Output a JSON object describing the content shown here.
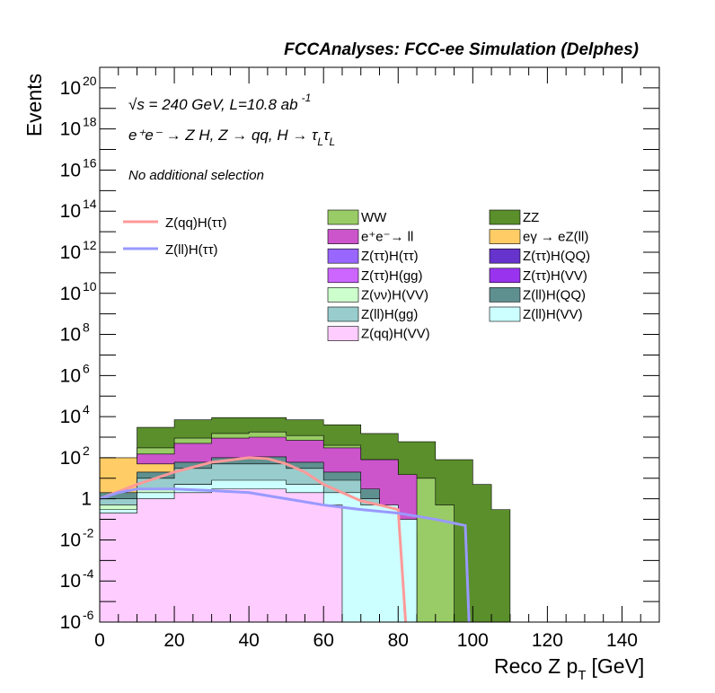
{
  "chart_data": {
    "type": "area",
    "title": "FCCAnalyses: FCC-ee Simulation (Delphes)",
    "xlabel": "Reco Z p",
    "xlabel_sub": "T",
    "xlabel_unit": "[GeV]",
    "ylabel": "Events",
    "x_range": [
      0,
      150
    ],
    "y_scale": "log",
    "y_range": [
      1e-06,
      1e+21
    ],
    "x_tick_labels": [
      "0",
      "20",
      "40",
      "60",
      "80",
      "100",
      "120",
      "140"
    ],
    "x_ticks": [
      0,
      20,
      40,
      60,
      80,
      100,
      120,
      140
    ],
    "y_ticks": [
      {
        "value": 1e-06,
        "base": "10",
        "exp": "-6"
      },
      {
        "value": 0.0001,
        "base": "10",
        "exp": "-4"
      },
      {
        "value": 0.01,
        "base": "10",
        "exp": "-2"
      },
      {
        "value": 1,
        "base": "1",
        "exp": ""
      },
      {
        "value": 100.0,
        "base": "10",
        "exp": "2"
      },
      {
        "value": 10000.0,
        "base": "10",
        "exp": "4"
      },
      {
        "value": 1000000.0,
        "base": "10",
        "exp": "6"
      },
      {
        "value": 100000000.0,
        "base": "10",
        "exp": "8"
      },
      {
        "value": 10000000000.0,
        "base": "10",
        "exp": "10"
      },
      {
        "value": 1000000000000.0,
        "base": "10",
        "exp": "12"
      },
      {
        "value": 100000000000000.0,
        "base": "10",
        "exp": "14"
      },
      {
        "value": 1e+16,
        "base": "10",
        "exp": "16"
      },
      {
        "value": 1e+18,
        "base": "10",
        "exp": "18"
      },
      {
        "value": 1e+20,
        "base": "10",
        "exp": "20"
      }
    ],
    "annotations": {
      "energy": "√s = 240 GeV, L=10.8 ab",
      "energy_sup": "-1",
      "process": "e⁺e⁻ → Z H, Z → qq, H → τ",
      "process_sub1": "L",
      "process_tau2": "τ",
      "process_sub2": "L",
      "selection": "No additional selection"
    },
    "stack_series": [
      {
        "name": "ZZ",
        "color": "#5a8f2b",
        "bins": [
          [
            0,
            50
          ],
          [
            10,
            3000
          ],
          [
            20,
            7000
          ],
          [
            30,
            9000
          ],
          [
            40,
            9000
          ],
          [
            50,
            7000
          ],
          [
            60,
            4000
          ],
          [
            70,
            1500
          ],
          [
            80,
            600
          ],
          [
            90,
            80
          ],
          [
            100,
            5
          ],
          [
            105,
            0.3
          ]
        ]
      },
      {
        "name": "WW",
        "color": "#99cc66",
        "bins": [
          [
            0,
            20
          ],
          [
            10,
            300
          ],
          [
            20,
            900
          ],
          [
            30,
            1500
          ],
          [
            40,
            1800
          ],
          [
            50,
            1200
          ],
          [
            60,
            400
          ],
          [
            70,
            80
          ],
          [
            80,
            10
          ],
          [
            90,
            0.5
          ]
        ]
      },
      {
        "name": "e⁺e⁻→ ll",
        "color": "#cc55cc",
        "bins": [
          [
            0,
            10
          ],
          [
            10,
            150
          ],
          [
            20,
            500
          ],
          [
            30,
            900
          ],
          [
            40,
            1000
          ],
          [
            50,
            700
          ],
          [
            60,
            300
          ],
          [
            70,
            80
          ],
          [
            80,
            15
          ]
        ]
      },
      {
        "name": "eγ → eZ(ll)",
        "color": "#ffcc66",
        "bins": [
          [
            0,
            100
          ],
          [
            10,
            50
          ],
          [
            20,
            10
          ],
          [
            30,
            3
          ],
          [
            40,
            0.5
          ],
          [
            50,
            0.2
          ],
          [
            60,
            0.1
          ],
          [
            70,
            0.05
          ],
          [
            80,
            0.02
          ]
        ]
      },
      {
        "name": "Z(ll)H(QQ)",
        "color": "#5f9090",
        "bins": [
          [
            0,
            2
          ],
          [
            10,
            20
          ],
          [
            20,
            60
          ],
          [
            30,
            100
          ],
          [
            40,
            110
          ],
          [
            50,
            60
          ],
          [
            60,
            20
          ],
          [
            70,
            3
          ]
        ]
      },
      {
        "name": "Z(ll)H(gg)",
        "color": "#99cccc",
        "bins": [
          [
            0,
            1
          ],
          [
            10,
            10
          ],
          [
            20,
            30
          ],
          [
            30,
            50
          ],
          [
            40,
            50
          ],
          [
            50,
            30
          ],
          [
            60,
            8
          ],
          [
            70,
            1
          ]
        ]
      },
      {
        "name": "Z(νν)H(VV)",
        "color": "#ccffcc",
        "bins": [
          [
            0,
            0.5
          ],
          [
            10,
            3
          ],
          [
            20,
            5
          ],
          [
            30,
            6
          ],
          [
            40,
            5
          ],
          [
            50,
            3
          ],
          [
            60,
            1
          ],
          [
            70,
            0.2
          ]
        ]
      },
      {
        "name": "Z(ττ)H(ττ)",
        "color": "#9966ff",
        "bins": [
          [
            0,
            0.1
          ],
          [
            10,
            0.5
          ],
          [
            20,
            0.8
          ],
          [
            30,
            0.8
          ],
          [
            40,
            0.6
          ],
          [
            50,
            0.3
          ],
          [
            60,
            0.1
          ]
        ]
      },
      {
        "name": "Z(ττ)H(QQ)",
        "color": "#6633cc",
        "bins": [
          [
            0,
            0.2
          ],
          [
            10,
            1
          ],
          [
            20,
            2
          ],
          [
            30,
            2
          ],
          [
            40,
            1.5
          ],
          [
            50,
            0.8
          ],
          [
            60,
            0.3
          ]
        ]
      },
      {
        "name": "Z(ττ)H(gg)",
        "color": "#cc66ff",
        "bins": [
          [
            0,
            0.1
          ],
          [
            10,
            0.3
          ],
          [
            20,
            0.5
          ],
          [
            30,
            0.5
          ],
          [
            40,
            0.4
          ],
          [
            50,
            0.2
          ],
          [
            60,
            0.05
          ]
        ]
      },
      {
        "name": "Z(ττ)H(VV)",
        "color": "#9933ee",
        "bins": [
          [
            0,
            0.05
          ],
          [
            10,
            0.2
          ],
          [
            20,
            0.3
          ],
          [
            30,
            0.3
          ],
          [
            40,
            0.2
          ],
          [
            50,
            0.1
          ]
        ]
      },
      {
        "name": "Z(ll)H(VV)",
        "color": "#ccffff",
        "bins": [
          [
            0,
            0.3
          ],
          [
            10,
            2
          ],
          [
            20,
            5
          ],
          [
            30,
            8
          ],
          [
            40,
            8
          ],
          [
            50,
            5
          ],
          [
            60,
            2
          ],
          [
            70,
            0.5
          ],
          [
            80,
            0.1
          ]
        ]
      },
      {
        "name": "Z(qq)H(VV)",
        "color": "#ffccff",
        "bins": [
          [
            0,
            0.2
          ],
          [
            10,
            1
          ],
          [
            20,
            2
          ],
          [
            30,
            3
          ],
          [
            40,
            3
          ],
          [
            50,
            2
          ],
          [
            60,
            0.5
          ]
        ]
      }
    ],
    "line_series": [
      {
        "name": "Z(qq)H(ττ)",
        "color": "#ff9999",
        "points": [
          [
            0,
            1
          ],
          [
            10,
            5
          ],
          [
            20,
            20
          ],
          [
            30,
            60
          ],
          [
            40,
            100
          ],
          [
            45,
            90
          ],
          [
            50,
            50
          ],
          [
            55,
            20
          ],
          [
            60,
            5
          ],
          [
            65,
            2
          ],
          [
            70,
            0.8
          ],
          [
            75,
            0.5
          ],
          [
            80,
            0.3
          ],
          [
            82,
            1e-06
          ]
        ]
      },
      {
        "name": "Z(ll)H(ττ)",
        "color": "#9999ff",
        "points": [
          [
            0,
            1
          ],
          [
            5,
            2
          ],
          [
            10,
            3
          ],
          [
            20,
            3
          ],
          [
            30,
            2.5
          ],
          [
            40,
            2
          ],
          [
            50,
            1
          ],
          [
            60,
            0.5
          ],
          [
            70,
            0.3
          ],
          [
            80,
            0.2
          ],
          [
            90,
            0.1
          ],
          [
            98,
            0.05
          ],
          [
            99,
            1e-06
          ]
        ]
      }
    ],
    "legend": {
      "placement": "top-right",
      "lines": [
        {
          "label": "Z(qq)H(ττ)",
          "color": "#ff9999"
        },
        {
          "label": "Z(ll)H(ττ)",
          "color": "#9999ff"
        }
      ],
      "col1": [
        {
          "label": "WW",
          "color": "#99cc66"
        },
        {
          "label": "e⁺e⁻→ ll",
          "color": "#cc55cc"
        },
        {
          "label": "Z(ττ)H(ττ)",
          "color": "#9966ff"
        },
        {
          "label": "Z(ττ)H(gg)",
          "color": "#cc66ff"
        },
        {
          "label": "Z(νν)H(VV)",
          "color": "#ccffcc"
        },
        {
          "label": "Z(ll)H(gg)",
          "color": "#99cccc"
        },
        {
          "label": "Z(qq)H(VV)",
          "color": "#ffccff"
        }
      ],
      "col2": [
        {
          "label": "ZZ",
          "color": "#5a8f2b"
        },
        {
          "label": "eγ → eZ(ll)",
          "color": "#ffcc66"
        },
        {
          "label": "Z(ττ)H(QQ)",
          "color": "#6633cc"
        },
        {
          "label": "Z(ττ)H(VV)",
          "color": "#9933ee"
        },
        {
          "label": "Z(ll)H(QQ)",
          "color": "#5f9090"
        },
        {
          "label": "Z(ll)H(VV)",
          "color": "#ccffff"
        }
      ]
    }
  }
}
